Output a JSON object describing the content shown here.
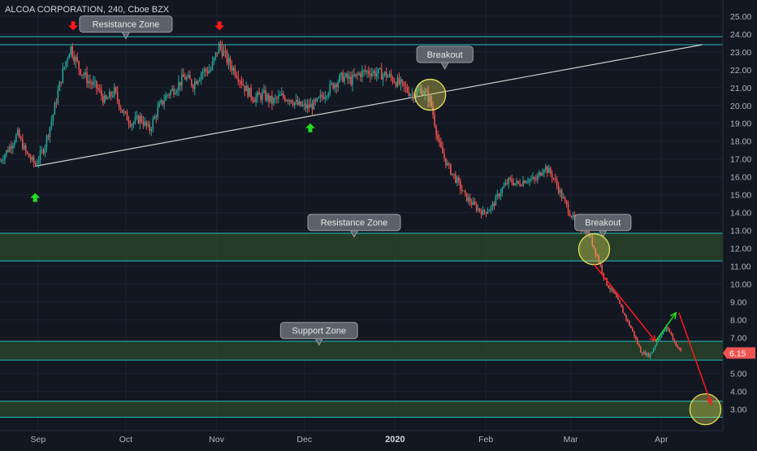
{
  "header": {
    "symbol_title": "ALCOA CORPORATION, 240, Cboe BZX"
  },
  "colors": {
    "background": "#131722",
    "grid": "#1e2230",
    "up": "#26a69a",
    "up_light": "#4caf50",
    "down": "#ef5350",
    "zone_line": "#22c2c2",
    "zone_fill": "#2b4a2a",
    "trendline": "#cfcfcf",
    "arrow_red": "#ff1a1a",
    "arrow_green": "#22dd22",
    "circle": "#e6e05a",
    "callout_bg": "#5d616b",
    "callout_border": "#9a9ea6",
    "price_label": "#ef5350"
  },
  "chart_data": {
    "type": "candlestick",
    "title": "ALCOA CORPORATION, 240, Cboe BZX",
    "y_axis": {
      "position": "right",
      "ylim": [
        1.8,
        25.9
      ],
      "ticks": [
        3,
        4,
        5,
        6,
        7,
        8,
        9,
        10,
        11,
        12,
        13,
        14,
        15,
        16,
        17,
        18,
        19,
        20,
        21,
        22,
        23,
        24,
        25
      ],
      "tick_labels": [
        "3.00",
        "4.00",
        "5.00",
        "6.00",
        "7.00",
        "8.00",
        "9.00",
        "10.00",
        "11.00",
        "12.00",
        "13.00",
        "14.00",
        "15.00",
        "16.00",
        "17.00",
        "18.00",
        "19.00",
        "20.00",
        "21.00",
        "22.00",
        "23.00",
        "24.00",
        "25.00"
      ]
    },
    "x_axis": {
      "xlim": [
        "2019-08-19",
        "2020-04-22"
      ],
      "ticks": [
        {
          "date": "2019-09-01",
          "label": "Sep"
        },
        {
          "date": "2019-10-01",
          "label": "Oct"
        },
        {
          "date": "2019-11-01",
          "label": "Nov"
        },
        {
          "date": "2019-12-01",
          "label": "Dec"
        },
        {
          "date": "2020-01-01",
          "label": "2020"
        },
        {
          "date": "2020-02-01",
          "label": "Feb"
        },
        {
          "date": "2020-03-01",
          "label": "Mar"
        },
        {
          "date": "2020-04-01",
          "label": "Apr"
        }
      ]
    },
    "grid": true,
    "last_price": {
      "value": 6.15,
      "label": "6.15"
    },
    "price_path": [
      [
        "2019-08-19",
        16.9
      ],
      [
        "2019-08-22",
        17.6
      ],
      [
        "2019-08-25",
        18.4
      ],
      [
        "2019-08-28",
        17.3
      ],
      [
        "2019-08-31",
        16.7
      ],
      [
        "2019-09-03",
        17.6
      ],
      [
        "2019-09-06",
        19.4
      ],
      [
        "2019-09-09",
        21.6
      ],
      [
        "2019-09-12",
        23.3
      ],
      [
        "2019-09-15",
        22.1
      ],
      [
        "2019-09-18",
        21.4
      ],
      [
        "2019-09-21",
        21.0
      ],
      [
        "2019-09-24",
        20.2
      ],
      [
        "2019-09-27",
        20.8
      ],
      [
        "2019-09-30",
        19.6
      ],
      [
        "2019-10-03",
        19.0
      ],
      [
        "2019-10-06",
        19.3
      ],
      [
        "2019-10-09",
        18.6
      ],
      [
        "2019-10-12",
        19.8
      ],
      [
        "2019-10-15",
        20.6
      ],
      [
        "2019-10-18",
        21.0
      ],
      [
        "2019-10-21",
        21.6
      ],
      [
        "2019-10-24",
        21.2
      ],
      [
        "2019-10-27",
        21.9
      ],
      [
        "2019-10-30",
        22.0
      ],
      [
        "2019-11-02",
        23.4
      ],
      [
        "2019-11-05",
        22.4
      ],
      [
        "2019-11-08",
        21.8
      ],
      [
        "2019-11-11",
        20.9
      ],
      [
        "2019-11-14",
        20.4
      ],
      [
        "2019-11-17",
        20.6
      ],
      [
        "2019-11-20",
        20.2
      ],
      [
        "2019-11-23",
        20.5
      ],
      [
        "2019-11-26",
        20.4
      ],
      [
        "2019-11-29",
        20.0
      ],
      [
        "2019-12-02",
        19.9
      ],
      [
        "2019-12-05",
        20.1
      ],
      [
        "2019-12-08",
        20.7
      ],
      [
        "2019-12-11",
        21.2
      ],
      [
        "2019-12-14",
        21.6
      ],
      [
        "2019-12-17",
        21.4
      ],
      [
        "2019-12-20",
        21.8
      ],
      [
        "2019-12-23",
        21.9
      ],
      [
        "2019-12-26",
        21.8
      ],
      [
        "2019-12-29",
        21.7
      ],
      [
        "2020-01-01",
        21.4
      ],
      [
        "2020-01-04",
        21.0
      ],
      [
        "2020-01-07",
        20.6
      ],
      [
        "2020-01-10",
        20.9
      ],
      [
        "2020-01-13",
        20.3
      ],
      [
        "2020-01-16",
        17.8
      ],
      [
        "2020-01-19",
        16.6
      ],
      [
        "2020-01-22",
        15.8
      ],
      [
        "2020-01-25",
        14.9
      ],
      [
        "2020-01-28",
        14.4
      ],
      [
        "2020-01-31",
        14.0
      ],
      [
        "2020-02-03",
        14.3
      ],
      [
        "2020-02-06",
        15.2
      ],
      [
        "2020-02-09",
        15.8
      ],
      [
        "2020-02-12",
        15.6
      ],
      [
        "2020-02-15",
        15.9
      ],
      [
        "2020-02-18",
        15.8
      ],
      [
        "2020-02-21",
        16.6
      ],
      [
        "2020-02-24",
        16.0
      ],
      [
        "2020-02-27",
        14.9
      ],
      [
        "2020-03-01",
        13.9
      ],
      [
        "2020-03-04",
        13.2
      ],
      [
        "2020-03-07",
        12.9
      ],
      [
        "2020-03-10",
        11.6
      ],
      [
        "2020-03-13",
        10.1
      ],
      [
        "2020-03-16",
        9.4
      ],
      [
        "2020-03-19",
        8.4
      ],
      [
        "2020-03-22",
        7.4
      ],
      [
        "2020-03-25",
        6.2
      ],
      [
        "2020-03-28",
        6.0
      ],
      [
        "2020-03-31",
        7.0
      ],
      [
        "2020-04-03",
        7.6
      ],
      [
        "2020-04-06",
        6.6
      ],
      [
        "2020-04-08",
        6.15
      ]
    ],
    "zones": [
      {
        "name": "Resistance Zone",
        "low": 23.4,
        "high": 23.85,
        "filled": false
      },
      {
        "name": "Resistance Zone",
        "low": 11.3,
        "high": 12.85,
        "filled": true
      },
      {
        "name": "Support Zone",
        "low": 5.75,
        "high": 6.8,
        "filled": true
      },
      {
        "name": "",
        "low": 2.55,
        "high": 3.45,
        "filled": true
      }
    ],
    "trendline": {
      "from": [
        "2019-08-31",
        16.6
      ],
      "to": [
        "2020-04-15",
        23.4
      ]
    },
    "annotations": [
      {
        "type": "callout",
        "text": "Resistance Zone",
        "at": [
          "2019-10-01",
          24.1
        ]
      },
      {
        "type": "callout",
        "text": "Breakout",
        "at": [
          "2020-01-18",
          22.4
        ]
      },
      {
        "type": "callout",
        "text": "Resistance Zone",
        "at": [
          "2019-12-18",
          13.0
        ]
      },
      {
        "type": "callout",
        "text": "Breakout",
        "at": [
          "2020-03-12",
          13.0
        ]
      },
      {
        "type": "callout",
        "text": "Support Zone",
        "at": [
          "2019-12-06",
          6.95
        ]
      },
      {
        "type": "arrow_down_marker",
        "color": "red",
        "at": [
          "2019-09-13",
          24.2
        ]
      },
      {
        "type": "arrow_down_marker",
        "color": "red",
        "at": [
          "2019-11-02",
          24.2
        ]
      },
      {
        "type": "arrow_up_marker",
        "color": "green",
        "at": [
          "2019-08-31",
          15.1
        ]
      },
      {
        "type": "arrow_up_marker",
        "color": "green",
        "at": [
          "2019-12-03",
          19.0
        ]
      },
      {
        "type": "circle",
        "at": [
          "2020-01-13",
          20.6
        ]
      },
      {
        "type": "circle",
        "at": [
          "2020-03-09",
          11.95
        ]
      },
      {
        "type": "circle",
        "at": [
          "2020-04-16",
          3.0
        ]
      },
      {
        "type": "arrow_line",
        "color": "red",
        "from": [
          "2020-03-09",
          11.1
        ],
        "to": [
          "2020-03-30",
          6.8
        ]
      },
      {
        "type": "arrow_line",
        "color": "green",
        "from": [
          "2020-03-30",
          6.8
        ],
        "to": [
          "2020-04-06",
          8.4
        ]
      },
      {
        "type": "arrow_line",
        "color": "red",
        "from": [
          "2020-04-07",
          8.4
        ],
        "to": [
          "2020-04-18",
          3.3
        ]
      }
    ]
  }
}
